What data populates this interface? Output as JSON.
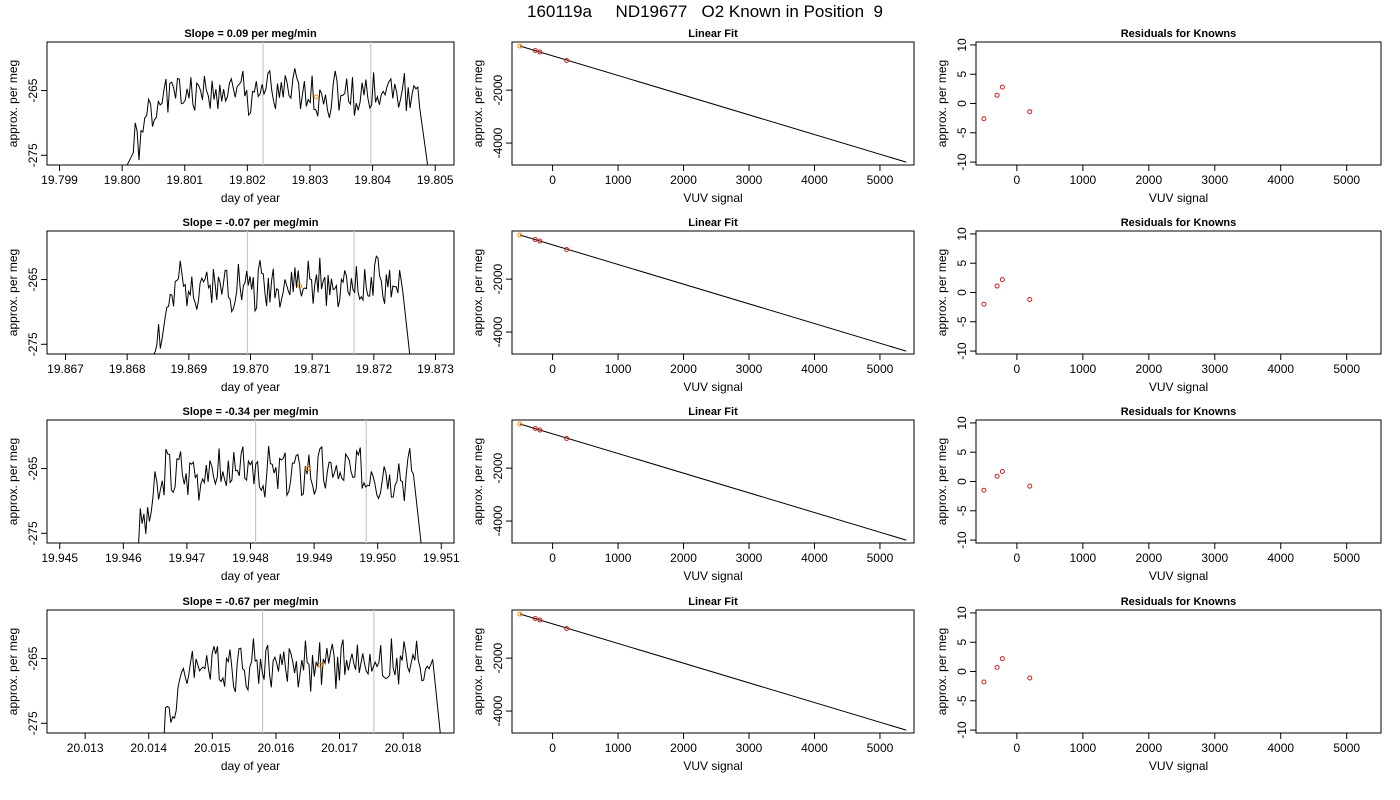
{
  "page_title": "160119a     ND19677   O2 Known in Position  9",
  "chart_data": [
    {
      "type": "line",
      "title": "Slope =  0.09  per meg/min",
      "xlabel": "day of year",
      "ylabel": "approx. per meg",
      "xlim": [
        19.7988,
        19.8053
      ],
      "ylim": [
        -276.5,
        -257.5
      ],
      "x_ticks": [
        "19.799",
        "19.800",
        "19.801",
        "19.802",
        "19.803",
        "19.804",
        "19.805"
      ],
      "y_ticks": [
        "-275",
        "-265"
      ],
      "vlines": [
        19.80225,
        19.80397
      ],
      "orange_points": [
        {
          "x": 19.8031,
          "y": -266
        }
      ],
      "series": [
        {
          "start": 19.8,
          "end": 19.8049,
          "base": -265.5,
          "seed": 1
        }
      ]
    },
    {
      "type": "line",
      "title": "Linear Fit",
      "xlabel": "VUV signal",
      "ylabel": "approx. per meg",
      "xlim": [
        -620,
        5520
      ],
      "ylim": [
        -4830,
        -180
      ],
      "x_ticks": [
        "0",
        "1000",
        "2000",
        "3000",
        "4000",
        "5000"
      ],
      "y_ticks": [
        "-2000",
        "-4000"
      ],
      "fit_line": [
        [
          -500,
          -330
        ],
        [
          5400,
          -4720
        ]
      ],
      "points": [
        {
          "x": -500,
          "y": -330,
          "color": "#ff8c00"
        },
        {
          "x": -265,
          "y": -500,
          "color": "#cc2020"
        },
        {
          "x": -195,
          "y": -560,
          "color": "#cc2020"
        },
        {
          "x": 215,
          "y": -880,
          "color": "#cc2020"
        }
      ]
    },
    {
      "type": "scatter",
      "title": "Residuals for Knowns",
      "xlabel": "VUV signal",
      "ylabel": "approx. per meg",
      "xlim": [
        -620,
        5520
      ],
      "ylim": [
        -10.5,
        10.5
      ],
      "x_ticks": [
        "0",
        "1000",
        "2000",
        "3000",
        "4000",
        "5000"
      ],
      "y_ticks": [
        "-10",
        "-5",
        "0",
        "5",
        "10"
      ],
      "points": [
        {
          "x": -500,
          "y": -2.6
        },
        {
          "x": -300,
          "y": 1.4
        },
        {
          "x": -220,
          "y": 2.8
        },
        {
          "x": 195,
          "y": -1.4
        }
      ]
    },
    {
      "type": "line",
      "title": "Slope =  -0.07  per meg/min",
      "xlabel": "day of year",
      "ylabel": "approx. per meg",
      "xlim": [
        19.8667,
        19.8733
      ],
      "ylim": [
        -276.5,
        -257.5
      ],
      "x_ticks": [
        "19.867",
        "19.868",
        "19.869",
        "19.870",
        "19.871",
        "19.872",
        "19.873"
      ],
      "y_ticks": [
        "-275",
        "-265"
      ],
      "vlines": [
        19.86995,
        19.87168
      ],
      "orange_points": [
        {
          "x": 19.8708,
          "y": -266
        }
      ],
      "series": [
        {
          "start": 19.8683,
          "end": 19.8726,
          "base": -265.8,
          "seed": 2
        }
      ]
    },
    {
      "type": "line",
      "title": "Linear Fit",
      "xlabel": "VUV signal",
      "ylabel": "approx. per meg",
      "xlim": [
        -620,
        5520
      ],
      "ylim": [
        -4830,
        -180
      ],
      "x_ticks": [
        "0",
        "1000",
        "2000",
        "3000",
        "4000",
        "5000"
      ],
      "y_ticks": [
        "-2000",
        "-4000"
      ],
      "fit_line": [
        [
          -500,
          -330
        ],
        [
          5400,
          -4720
        ]
      ],
      "points": [
        {
          "x": -500,
          "y": -330,
          "color": "#ff8c00"
        },
        {
          "x": -265,
          "y": -500,
          "color": "#cc2020"
        },
        {
          "x": -195,
          "y": -560,
          "color": "#cc2020"
        },
        {
          "x": 215,
          "y": -880,
          "color": "#cc2020"
        }
      ]
    },
    {
      "type": "scatter",
      "title": "Residuals for Knowns",
      "xlabel": "VUV signal",
      "ylabel": "approx. per meg",
      "xlim": [
        -620,
        5520
      ],
      "ylim": [
        -10.5,
        10.5
      ],
      "x_ticks": [
        "0",
        "1000",
        "2000",
        "3000",
        "4000",
        "5000"
      ],
      "y_ticks": [
        "-10",
        "-5",
        "0",
        "5",
        "10"
      ],
      "points": [
        {
          "x": -500,
          "y": -2.0
        },
        {
          "x": -300,
          "y": 1.1
        },
        {
          "x": -220,
          "y": 2.2
        },
        {
          "x": 195,
          "y": -1.2
        }
      ]
    },
    {
      "type": "line",
      "title": "Slope =  -0.34  per meg/min",
      "xlabel": "day of year",
      "ylabel": "approx. per meg",
      "xlim": [
        19.9448,
        19.9512
      ],
      "ylim": [
        -276.5,
        -257.5
      ],
      "x_ticks": [
        "19.945",
        "19.946",
        "19.947",
        "19.948",
        "19.949",
        "19.950",
        "19.951"
      ],
      "y_ticks": [
        "-275",
        "-265"
      ],
      "vlines": [
        19.94808,
        19.94982
      ],
      "orange_points": [
        {
          "x": 19.9489,
          "y": -265
        }
      ],
      "series": [
        {
          "start": 19.9461,
          "end": 19.9507,
          "base": -265.6,
          "seed": 3
        }
      ]
    },
    {
      "type": "line",
      "title": "Linear Fit",
      "xlabel": "VUV signal",
      "ylabel": "approx. per meg",
      "xlim": [
        -620,
        5520
      ],
      "ylim": [
        -4830,
        -180
      ],
      "x_ticks": [
        "0",
        "1000",
        "2000",
        "3000",
        "4000",
        "5000"
      ],
      "y_ticks": [
        "-2000",
        "-4000"
      ],
      "fit_line": [
        [
          -500,
          -330
        ],
        [
          5400,
          -4720
        ]
      ],
      "points": [
        {
          "x": -500,
          "y": -330,
          "color": "#ff8c00"
        },
        {
          "x": -265,
          "y": -500,
          "color": "#cc2020"
        },
        {
          "x": -195,
          "y": -560,
          "color": "#cc2020"
        },
        {
          "x": 215,
          "y": -880,
          "color": "#cc2020"
        }
      ]
    },
    {
      "type": "scatter",
      "title": "Residuals for Knowns",
      "xlabel": "VUV signal",
      "ylabel": "approx. per meg",
      "xlim": [
        -620,
        5520
      ],
      "ylim": [
        -10.5,
        10.5
      ],
      "x_ticks": [
        "0",
        "1000",
        "2000",
        "3000",
        "4000",
        "5000"
      ],
      "y_ticks": [
        "-10",
        "-5",
        "0",
        "5",
        "10"
      ],
      "points": [
        {
          "x": -500,
          "y": -1.5
        },
        {
          "x": -300,
          "y": 0.9
        },
        {
          "x": -220,
          "y": 1.7
        },
        {
          "x": 195,
          "y": -0.8
        }
      ]
    },
    {
      "type": "line",
      "title": "Slope =  -0.67  per meg/min",
      "xlabel": "day of year",
      "ylabel": "approx. per meg",
      "xlim": [
        20.0124,
        20.0188
      ],
      "ylim": [
        -276.5,
        -257.5
      ],
      "x_ticks": [
        "20.013",
        "20.014",
        "20.015",
        "20.016",
        "20.017",
        "20.018"
      ],
      "y_ticks": [
        "-275",
        "-265"
      ],
      "vlines": [
        20.01579,
        20.01754
      ],
      "orange_points": [
        {
          "x": 20.0167,
          "y": -266
        }
      ],
      "series": [
        {
          "start": 20.0141,
          "end": 20.0186,
          "base": -265.8,
          "seed": 4
        }
      ]
    },
    {
      "type": "line",
      "title": "Linear Fit",
      "xlabel": "VUV signal",
      "ylabel": "approx. per meg",
      "xlim": [
        -620,
        5520
      ],
      "ylim": [
        -4830,
        -180
      ],
      "x_ticks": [
        "0",
        "1000",
        "2000",
        "3000",
        "4000",
        "5000"
      ],
      "y_ticks": [
        "-2000",
        "-4000"
      ],
      "fit_line": [
        [
          -500,
          -330
        ],
        [
          5400,
          -4720
        ]
      ],
      "points": [
        {
          "x": -500,
          "y": -330,
          "color": "#ff8c00"
        },
        {
          "x": -265,
          "y": -500,
          "color": "#cc2020"
        },
        {
          "x": -195,
          "y": -560,
          "color": "#cc2020"
        },
        {
          "x": 215,
          "y": -880,
          "color": "#cc2020"
        }
      ]
    },
    {
      "type": "scatter",
      "title": "Residuals for Knowns",
      "xlabel": "VUV signal",
      "ylabel": "approx. per meg",
      "xlim": [
        -620,
        5520
      ],
      "ylim": [
        -10.5,
        10.5
      ],
      "x_ticks": [
        "0",
        "1000",
        "2000",
        "3000",
        "4000",
        "5000"
      ],
      "y_ticks": [
        "-10",
        "-5",
        "0",
        "5",
        "10"
      ],
      "points": [
        {
          "x": -500,
          "y": -1.8
        },
        {
          "x": -300,
          "y": 0.7
        },
        {
          "x": -220,
          "y": 2.2
        },
        {
          "x": 195,
          "y": -1.1
        }
      ]
    }
  ]
}
